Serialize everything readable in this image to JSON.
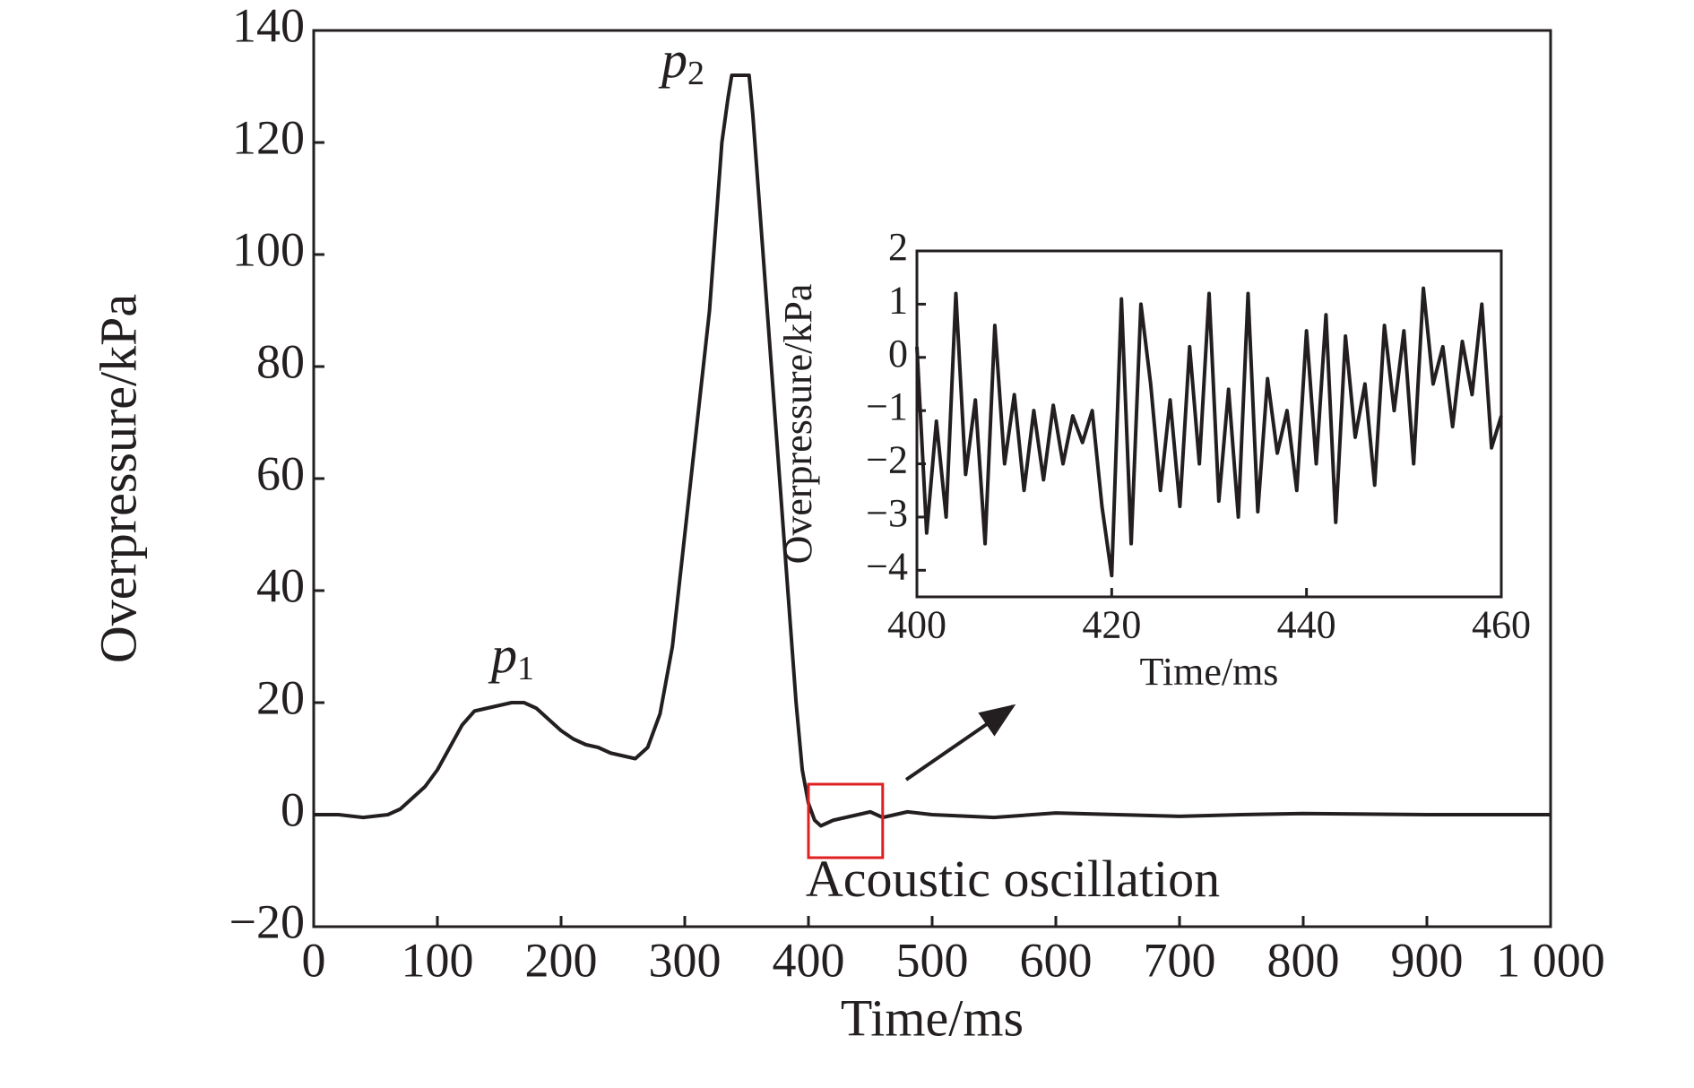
{
  "chart_data": [
    {
      "type": "line",
      "xlabel": "Time/ms",
      "ylabel": "Overpressure/kPa",
      "xlim": [
        0,
        1000
      ],
      "ylim": [
        -20,
        140
      ],
      "xticks": [
        0,
        100,
        200,
        300,
        400,
        500,
        600,
        700,
        800,
        900,
        {
          "value": 1000,
          "label": "1 000"
        }
      ],
      "yticks": [
        {
          "value": -20,
          "label": "−20"
        },
        0,
        20,
        40,
        60,
        80,
        100,
        120,
        140
      ],
      "annotations": [
        {
          "text": "p",
          "subscript": "1"
        },
        {
          "text": "p",
          "subscript": "2"
        },
        {
          "text": "Acoustic oscillation"
        }
      ],
      "x": [
        0,
        20,
        40,
        60,
        70,
        80,
        90,
        100,
        110,
        120,
        130,
        140,
        150,
        160,
        170,
        180,
        190,
        200,
        210,
        220,
        230,
        240,
        250,
        260,
        270,
        280,
        290,
        300,
        310,
        320,
        325,
        330,
        335,
        338,
        352,
        355,
        360,
        370,
        380,
        390,
        395,
        400,
        405,
        410,
        420,
        430,
        440,
        450,
        460,
        480,
        500,
        550,
        600,
        650,
        700,
        750,
        800,
        900,
        1000
      ],
      "series": [
        {
          "color": "#231f20",
          "values": [
            0,
            0,
            -0.5,
            0,
            1,
            3,
            5,
            8,
            12,
            16,
            18.5,
            19,
            19.5,
            20,
            20,
            19,
            17,
            15,
            13.5,
            12.5,
            12,
            11,
            10.5,
            10,
            12,
            18,
            30,
            50,
            70,
            90,
            105,
            120,
            128,
            132,
            132,
            125,
            110,
            80,
            50,
            20,
            8,
            2,
            -1,
            -2,
            -1,
            -0.5,
            0,
            0.5,
            -0.5,
            0.5,
            0,
            -0.5,
            0.3,
            0,
            -0.3,
            0,
            0.2,
            0,
            0
          ]
        }
      ]
    },
    {
      "type": "line",
      "xlabel": "Time/ms",
      "ylabel": "Overpressure/kPa",
      "xlim": [
        400,
        460
      ],
      "ylim": [
        -4.5,
        2
      ],
      "xticks": [
        400,
        420,
        440,
        460
      ],
      "yticks": [
        {
          "value": -4,
          "label": "−4"
        },
        {
          "value": -3,
          "label": "−3"
        },
        {
          "value": -2,
          "label": "−2"
        },
        {
          "value": -1,
          "label": "−1"
        },
        0,
        1,
        2
      ],
      "x": [
        400,
        401,
        402,
        403,
        404,
        405,
        406,
        407,
        408,
        409,
        410,
        411,
        412,
        413,
        414,
        415,
        416,
        417,
        418,
        419,
        420,
        421,
        422,
        423,
        424,
        425,
        426,
        427,
        428,
        429,
        430,
        431,
        432,
        433,
        434,
        435,
        436,
        437,
        438,
        439,
        440,
        441,
        442,
        443,
        444,
        445,
        446,
        447,
        448,
        449,
        450,
        451,
        452,
        453,
        454,
        455,
        456,
        457,
        458,
        459,
        460
      ],
      "series": [
        {
          "color": "#231f20",
          "values": [
            0.2,
            -3.3,
            -1.2,
            -3.0,
            1.2,
            -2.2,
            -0.8,
            -3.5,
            0.6,
            -2.0,
            -0.7,
            -2.5,
            -1.0,
            -2.3,
            -0.9,
            -2.0,
            -1.1,
            -1.6,
            -1.0,
            -2.8,
            -4.1,
            1.1,
            -3.5,
            1.0,
            -0.5,
            -2.5,
            -0.8,
            -2.8,
            0.2,
            -2.0,
            1.2,
            -2.7,
            -0.6,
            -3.0,
            1.2,
            -2.9,
            -0.4,
            -1.8,
            -1.0,
            -2.5,
            0.5,
            -2.0,
            0.8,
            -3.1,
            0.4,
            -1.5,
            -0.5,
            -2.4,
            0.6,
            -1.0,
            0.5,
            -2.0,
            1.3,
            -0.5,
            0.2,
            -1.3,
            0.3,
            -0.7,
            1.0,
            -1.7,
            -1.1
          ]
        }
      ]
    }
  ]
}
